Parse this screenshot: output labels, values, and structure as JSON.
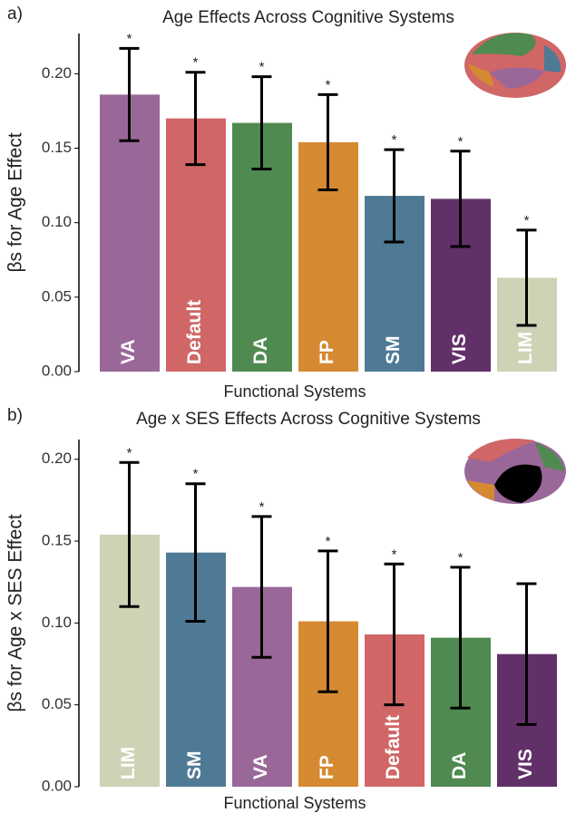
{
  "chart_data": [
    {
      "type": "bar",
      "panel_label": "a)",
      "title": "Age Effects Across Cognitive Systems",
      "xlabel": "Functional Systems",
      "ylabel": "βs for Age Effect",
      "categories": [
        "VA",
        "Default",
        "DA",
        "FP",
        "SM",
        "VIS",
        "LIM"
      ],
      "values": [
        0.186,
        0.17,
        0.167,
        0.154,
        0.118,
        0.116,
        0.063
      ],
      "errors": [
        0.031,
        0.031,
        0.031,
        0.032,
        0.031,
        0.032,
        0.032
      ],
      "annotations": [
        "*",
        "*",
        "*",
        "*",
        "*",
        "*",
        "*"
      ],
      "colors": [
        "#9a6799",
        "#d06666",
        "#4f8a50",
        "#d58a32",
        "#4e7a96",
        "#623069",
        "#cdd3b5"
      ],
      "ylim": [
        0,
        0.227
      ],
      "yticks": [
        {
          "value": 0,
          "label": "0.00"
        },
        {
          "value": 0.05,
          "label": "0.05"
        },
        {
          "value": 0.1,
          "label": "0.10"
        },
        {
          "value": 0.15,
          "label": "0.15"
        },
        {
          "value": 0.2,
          "label": "0.20"
        }
      ]
    },
    {
      "type": "bar",
      "panel_label": "b)",
      "title": "Age x SES Effects Across Cognitive Systems",
      "xlabel": "Functional Systems",
      "ylabel": "βs for Age x SES Effect",
      "categories": [
        "LIM",
        "SM",
        "VA",
        "FP",
        "Default",
        "DA",
        "VIS"
      ],
      "values": [
        0.154,
        0.143,
        0.122,
        0.101,
        0.093,
        0.091,
        0.081
      ],
      "errors": [
        0.044,
        0.042,
        0.043,
        0.043,
        0.043,
        0.043,
        0.043
      ],
      "annotations": [
        "*",
        "*",
        "*",
        "*",
        "*",
        "*",
        null
      ],
      "colors": [
        "#cdd3b5",
        "#4e7a96",
        "#9a6799",
        "#d58a32",
        "#d06666",
        "#4f8a50",
        "#623069"
      ],
      "ylim": [
        0,
        0.212
      ],
      "yticks": [
        {
          "value": 0,
          "label": "0.00"
        },
        {
          "value": 0.05,
          "label": "0.05"
        },
        {
          "value": 0.1,
          "label": "0.10"
        },
        {
          "value": 0.15,
          "label": "0.15"
        },
        {
          "value": 0.2,
          "label": "0.20"
        }
      ]
    }
  ]
}
